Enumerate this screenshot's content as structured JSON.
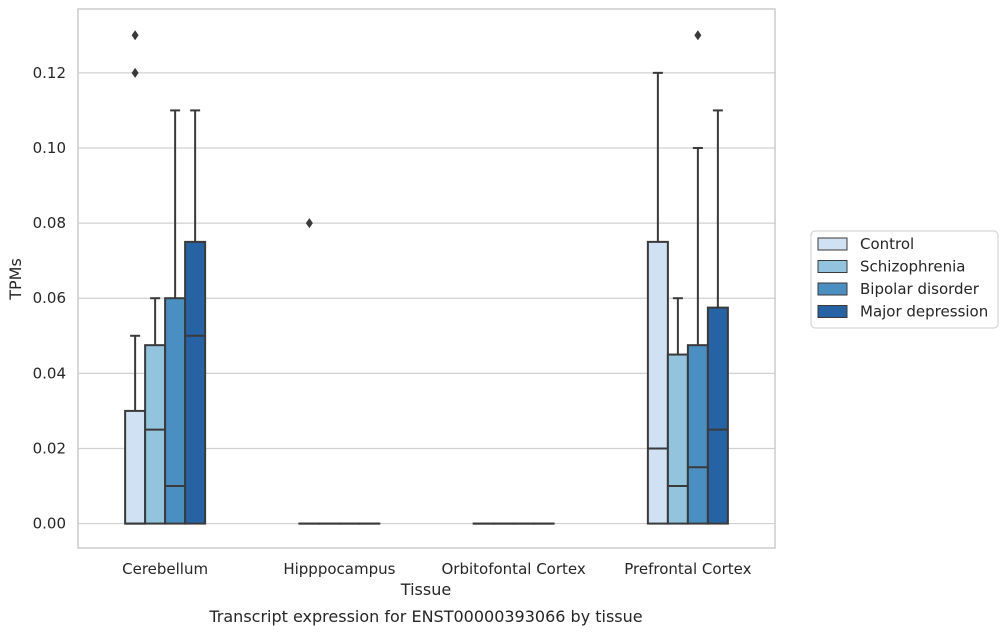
{
  "chart_data": {
    "type": "box",
    "title": "Transcript expression for ENST00000393066 by tissue",
    "xlabel": "Tissue",
    "ylabel": "TPMs",
    "ylim": [
      -0.0065,
      0.137
    ],
    "yticks": [
      "0.00",
      "0.02",
      "0.04",
      "0.06",
      "0.08",
      "0.10",
      "0.12"
    ],
    "grid": true,
    "legend_position": "right",
    "categories": [
      "Cerebellum",
      "Hipppocampus",
      "Orbitofontal Cortex",
      "Prefrontal Cortex"
    ],
    "series": [
      {
        "name": "Control",
        "color": "#cfe1f2",
        "boxes": [
          {
            "min": 0.0,
            "q1": 0.0,
            "median": 0.0,
            "q3": 0.03,
            "max": 0.05,
            "outliers": [
              0.12,
              0.13
            ]
          },
          {
            "min": 0.0,
            "q1": 0.0,
            "median": 0.0,
            "q3": 0.0,
            "max": 0.0,
            "outliers": [
              0.08
            ]
          },
          {
            "min": 0.0,
            "q1": 0.0,
            "median": 0.0,
            "q3": 0.0,
            "max": 0.0,
            "outliers": []
          },
          {
            "min": 0.0,
            "q1": 0.0,
            "median": 0.02,
            "q3": 0.075,
            "max": 0.12,
            "outliers": []
          }
        ]
      },
      {
        "name": "Schizophrenia",
        "color": "#93c4de",
        "boxes": [
          {
            "min": 0.0,
            "q1": 0.0,
            "median": 0.025,
            "q3": 0.0475,
            "max": 0.06,
            "outliers": []
          },
          {
            "min": 0.0,
            "q1": 0.0,
            "median": 0.0,
            "q3": 0.0,
            "max": 0.0,
            "outliers": []
          },
          {
            "min": 0.0,
            "q1": 0.0,
            "median": 0.0,
            "q3": 0.0,
            "max": 0.0,
            "outliers": []
          },
          {
            "min": 0.0,
            "q1": 0.0,
            "median": 0.01,
            "q3": 0.045,
            "max": 0.06,
            "outliers": []
          }
        ]
      },
      {
        "name": "Bipolar disorder",
        "color": "#4a8fc2",
        "boxes": [
          {
            "min": 0.0,
            "q1": 0.0,
            "median": 0.01,
            "q3": 0.06,
            "max": 0.11,
            "outliers": []
          },
          {
            "min": 0.0,
            "q1": 0.0,
            "median": 0.0,
            "q3": 0.0,
            "max": 0.0,
            "outliers": []
          },
          {
            "min": 0.0,
            "q1": 0.0,
            "median": 0.0,
            "q3": 0.0,
            "max": 0.0,
            "outliers": []
          },
          {
            "min": 0.0,
            "q1": 0.0,
            "median": 0.015,
            "q3": 0.0475,
            "max": 0.1,
            "outliers": [
              0.13
            ]
          }
        ]
      },
      {
        "name": "Major depression",
        "color": "#2563a4",
        "boxes": [
          {
            "min": 0.0,
            "q1": 0.0,
            "median": 0.05,
            "q3": 0.075,
            "max": 0.11,
            "outliers": []
          },
          {
            "min": 0.0,
            "q1": 0.0,
            "median": 0.0,
            "q3": 0.0,
            "max": 0.0,
            "outliers": []
          },
          {
            "min": 0.0,
            "q1": 0.0,
            "median": 0.0,
            "q3": 0.0,
            "max": 0.0,
            "outliers": []
          },
          {
            "min": 0.0,
            "q1": 0.0,
            "median": 0.025,
            "q3": 0.0575,
            "max": 0.11,
            "outliers": []
          }
        ]
      }
    ]
  }
}
